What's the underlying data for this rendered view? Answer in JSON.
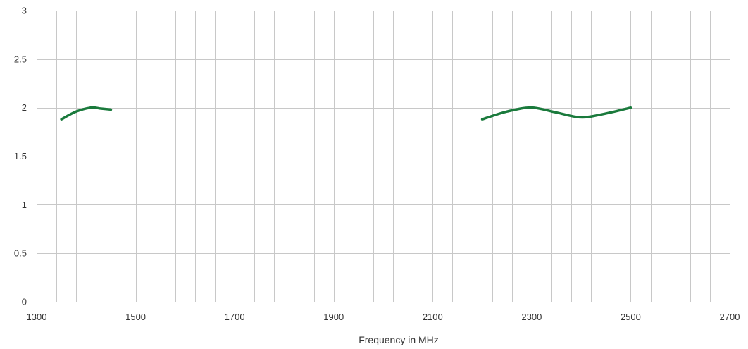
{
  "chart_data": {
    "type": "line",
    "title": "",
    "xlabel": "Frequency in MHz",
    "ylabel": "",
    "xlim": [
      1300,
      2700
    ],
    "ylim": [
      0,
      3
    ],
    "x_major_ticks": [
      1300,
      1500,
      1700,
      1900,
      2100,
      2300,
      2500,
      2700
    ],
    "x_minor_step": 40,
    "y_ticks": [
      0,
      0.5,
      1,
      1.5,
      2,
      2.5,
      3
    ],
    "grid": true,
    "legend": "none",
    "colors": {
      "series": "#1a7a3c",
      "grid": "#c8c8c8",
      "axis": "#9a9a9a",
      "text": "#333333"
    },
    "series": [
      {
        "segments": [
          {
            "x": [
              1350,
              1380,
              1410,
              1430,
              1450
            ],
            "y": [
              1.88,
              1.96,
              2.0,
              1.99,
              1.98
            ]
          },
          {
            "x": [
              2200,
              2250,
              2300,
              2350,
              2400,
              2450,
              2500
            ],
            "y": [
              1.88,
              1.96,
              2.0,
              1.95,
              1.9,
              1.94,
              2.0
            ]
          }
        ]
      }
    ]
  }
}
